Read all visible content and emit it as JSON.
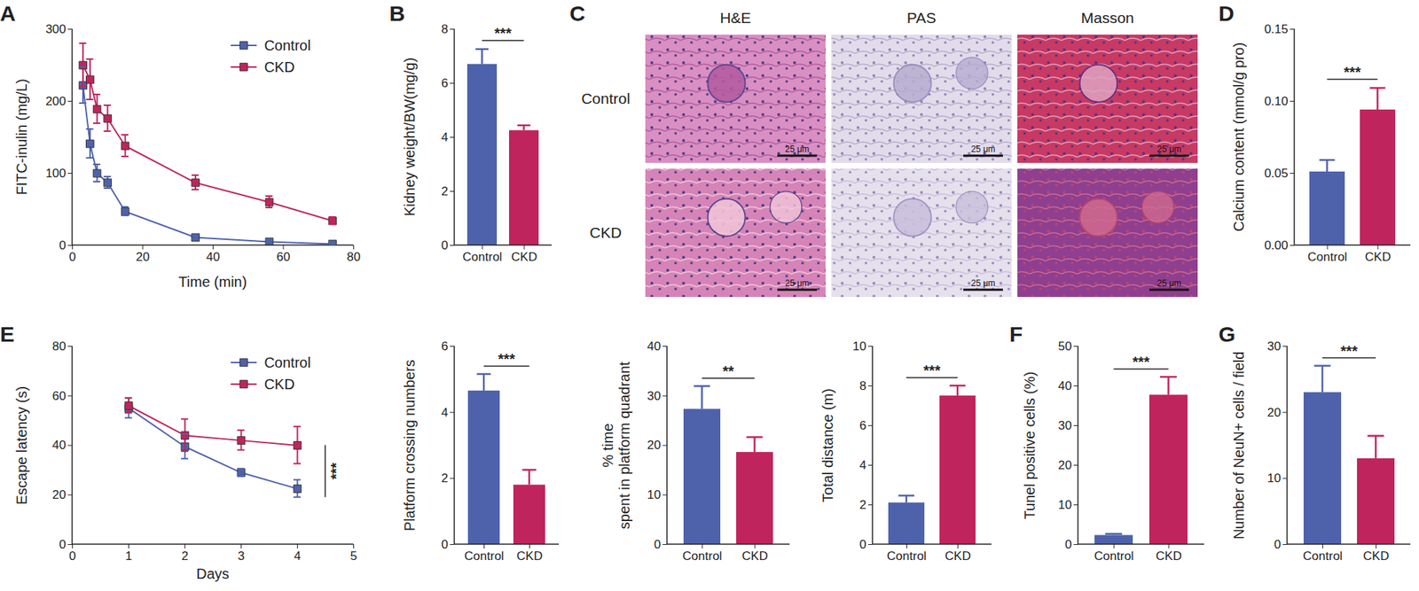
{
  "chart_data": [
    {
      "panel": "A",
      "type": "line",
      "x_label": "Time (min)",
      "y_label": "FITC-inulin (mg/L)",
      "x": [
        3,
        5,
        7,
        10,
        15,
        35,
        56,
        74
      ],
      "series": [
        {
          "name": "Control",
          "color": "#4e62ab",
          "marker": "square",
          "values": [
            222,
            141,
            100,
            87,
            47,
            11,
            5,
            2
          ],
          "errors": [
            25,
            20,
            12,
            8,
            6,
            3,
            2,
            1
          ]
        },
        {
          "name": "CKD",
          "color": "#c0245c",
          "marker": "square",
          "values": [
            250,
            230,
            189,
            176,
            138,
            87,
            60,
            34
          ],
          "errors": [
            30,
            28,
            20,
            18,
            15,
            10,
            8,
            5
          ]
        }
      ],
      "xlim": [
        0,
        80
      ],
      "xticks": [
        0,
        20,
        40,
        60,
        80
      ],
      "ylim": [
        0,
        300
      ],
      "yticks": [
        0,
        100,
        200,
        300
      ],
      "legend": "top-right"
    },
    {
      "panel": "B",
      "type": "bar",
      "y_label": "Kidney weight/BW(mg/g)",
      "categories": [
        "Control",
        "CKD"
      ],
      "values": [
        6.7,
        4.25
      ],
      "errors": [
        0.55,
        0.18
      ],
      "colors": [
        "#4e62ab",
        "#c0245c"
      ],
      "ylim": [
        0,
        8
      ],
      "yticks": [
        0,
        2,
        4,
        6,
        8
      ],
      "significance": "***"
    },
    {
      "panel": "D",
      "type": "bar",
      "y_label": "Calcium content (mmol/g pro)",
      "categories": [
        "Control",
        "CKD"
      ],
      "values": [
        0.051,
        0.094
      ],
      "errors": [
        0.008,
        0.015
      ],
      "colors": [
        "#4e62ab",
        "#c0245c"
      ],
      "ylim": [
        0,
        0.15
      ],
      "yticks": [
        {
          "value": 0,
          "label": "0.00"
        },
        {
          "value": 0.05,
          "label": "0.05"
        },
        {
          "value": 0.1,
          "label": "0.10"
        },
        {
          "value": 0.15,
          "label": "0.15"
        }
      ],
      "significance": "***"
    },
    {
      "panel": "E",
      "type": "line",
      "x_label": "Days",
      "y_label": "Escape latency (s)",
      "x": [
        1,
        2,
        3,
        4
      ],
      "series": [
        {
          "name": "Control",
          "color": "#4e62ab",
          "marker": "square",
          "values": [
            55,
            39.5,
            29,
            22.5
          ],
          "errors": [
            4,
            5,
            1.5,
            3.5
          ]
        },
        {
          "name": "CKD",
          "color": "#c0245c",
          "marker": "square",
          "values": [
            56,
            44,
            42,
            40
          ],
          "errors": [
            3,
            6.5,
            4,
            7.5
          ]
        }
      ],
      "xlim": [
        0,
        5
      ],
      "xticks": [
        0,
        1,
        2,
        3,
        4,
        5
      ],
      "ylim": [
        0,
        80
      ],
      "yticks": [
        0,
        20,
        40,
        60,
        80
      ],
      "legend": "top-right",
      "significance": "***"
    },
    {
      "type": "bar",
      "y_label": "Platform crossing numbers",
      "categories": [
        "Control",
        "CKD"
      ],
      "values": [
        4.65,
        1.8
      ],
      "errors": [
        0.5,
        0.45
      ],
      "colors": [
        "#4e62ab",
        "#c0245c"
      ],
      "ylim": [
        0,
        6
      ],
      "yticks": [
        0,
        2,
        4,
        6
      ],
      "significance": "***"
    },
    {
      "type": "bar",
      "y_label": "% time\nspent in platform quadrant",
      "categories": [
        "Control",
        "CKD"
      ],
      "values": [
        27.3,
        18.6
      ],
      "errors": [
        4.6,
        3
      ],
      "colors": [
        "#4e62ab",
        "#c0245c"
      ],
      "ylim": [
        0,
        40
      ],
      "yticks": [
        0,
        10,
        20,
        30,
        40
      ],
      "significance": "**"
    },
    {
      "type": "bar",
      "y_label": "Total distance (m)",
      "categories": [
        "Control",
        "CKD"
      ],
      "values": [
        2.1,
        7.5
      ],
      "errors": [
        0.35,
        0.5
      ],
      "colors": [
        "#4e62ab",
        "#c0245c"
      ],
      "ylim": [
        0,
        10
      ],
      "yticks": [
        0,
        2,
        4,
        6,
        8,
        10
      ],
      "significance": "***"
    },
    {
      "panel": "F",
      "type": "bar",
      "y_label": "Tunel positive cells (%)",
      "categories": [
        "Control",
        "CKD"
      ],
      "values": [
        2.3,
        37.7
      ],
      "errors": [
        0.3,
        4.5
      ],
      "colors": [
        "#4e62ab",
        "#c0245c"
      ],
      "ylim": [
        0,
        50
      ],
      "yticks": [
        0,
        10,
        20,
        30,
        40,
        50
      ],
      "significance": "***"
    },
    {
      "panel": "G",
      "type": "bar",
      "y_label": "Number of NeuN+ cells / field",
      "categories": [
        "Control",
        "CKD"
      ],
      "values": [
        23,
        13
      ],
      "errors": [
        4,
        3.4
      ],
      "colors": [
        "#4e62ab",
        "#c0245c"
      ],
      "ylim": [
        0,
        30
      ],
      "yticks": [
        0,
        10,
        20,
        30
      ],
      "significance": "***"
    }
  ],
  "histology": {
    "panel": "C",
    "columns": [
      "H&E",
      "PAS",
      "Masson"
    ],
    "rows": [
      "Control",
      "CKD"
    ],
    "scale_bar": "25 μm"
  }
}
